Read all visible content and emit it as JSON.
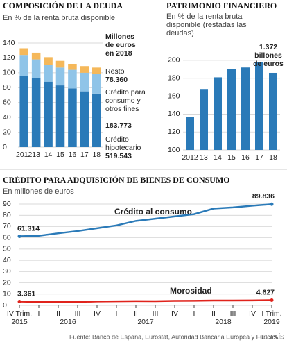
{
  "chart_data": [
    {
      "type": "stacked_bar",
      "title": "COMPOSICIÓN DE LA DEUDA",
      "subtitle": "En % de la renta bruta disponible",
      "categories": [
        "2012",
        "13",
        "14",
        "15",
        "16",
        "17",
        "18"
      ],
      "series": [
        {
          "name": "Crédito hipotecario",
          "color": "#2a7ab8",
          "values": [
            96,
            93,
            88,
            83,
            79,
            75,
            72
          ],
          "amount": "519.543"
        },
        {
          "name": "Crédito para consumo y otros fines",
          "color": "#8fc4e8",
          "values": [
            28,
            25,
            23,
            24,
            25,
            25,
            26
          ],
          "amount": "183.773"
        },
        {
          "name": "Resto",
          "color": "#f5b85a",
          "values": [
            9,
            9,
            10,
            9,
            8,
            9,
            9
          ],
          "amount": "78.360"
        }
      ],
      "legend_title": "Millones de euros en 2018",
      "ylim": [
        0,
        140
      ],
      "yticks": [
        0,
        20,
        40,
        60,
        80,
        100,
        120,
        140
      ],
      "grid": true
    },
    {
      "type": "bar",
      "title": "PATRIMONIO FINANCIERO",
      "subtitle": "En % de la renta bruta disponible (restadas las deudas)",
      "categories": [
        "2012",
        "13",
        "14",
        "15",
        "16",
        "17",
        "18"
      ],
      "values": [
        137,
        168,
        181,
        190,
        192,
        198,
        186
      ],
      "color": "#2a7ab8",
      "annotation": "1.372 billones de euros",
      "ylim": [
        100,
        210
      ],
      "yticks": [
        100,
        120,
        140,
        160,
        180,
        200
      ],
      "grid": true
    },
    {
      "type": "line",
      "title": "CRÉDITO PARA ADQUISICIÓN DE BIENES DE CONSUMO",
      "subtitle": "En millones de euros",
      "categories": [
        "IV Trim.",
        "I",
        "II",
        "III",
        "IV",
        "I",
        "II",
        "III",
        "IV",
        "I",
        "II",
        "III",
        "IV",
        "I Trim."
      ],
      "year_labels": [
        "2015",
        "2016",
        "2017",
        "2018",
        "2019"
      ],
      "series": [
        {
          "name": "Crédito al consumo",
          "color": "#2a7ab8",
          "values": [
            61.314,
            61.8,
            64,
            66,
            68.5,
            71,
            75,
            77,
            79,
            81,
            86,
            87,
            88.5,
            89.836
          ],
          "value_labels": [
            "61.314",
            null,
            null,
            null,
            null,
            null,
            null,
            null,
            null,
            null,
            null,
            null,
            null,
            "89.836"
          ]
        },
        {
          "name": "Morosidad",
          "color": "#e0231c",
          "values": [
            3.361,
            3.0,
            2.9,
            3.0,
            3.5,
            3.6,
            3.8,
            3.7,
            4.0,
            4.1,
            4.3,
            4.3,
            4.4,
            4.627
          ],
          "value_labels": [
            "3.361",
            null,
            null,
            null,
            null,
            null,
            null,
            null,
            null,
            null,
            null,
            null,
            null,
            "4.627"
          ]
        }
      ],
      "ylim": [
        0,
        90
      ],
      "yticks": [
        0,
        10,
        20,
        30,
        40,
        50,
        60,
        70,
        80,
        90
      ],
      "grid": true
    }
  ],
  "source": "Fuente: Banco de España, Eurostat, Autoridad Bancaria Europea y Funcas.",
  "brand": "EL PAÍS"
}
